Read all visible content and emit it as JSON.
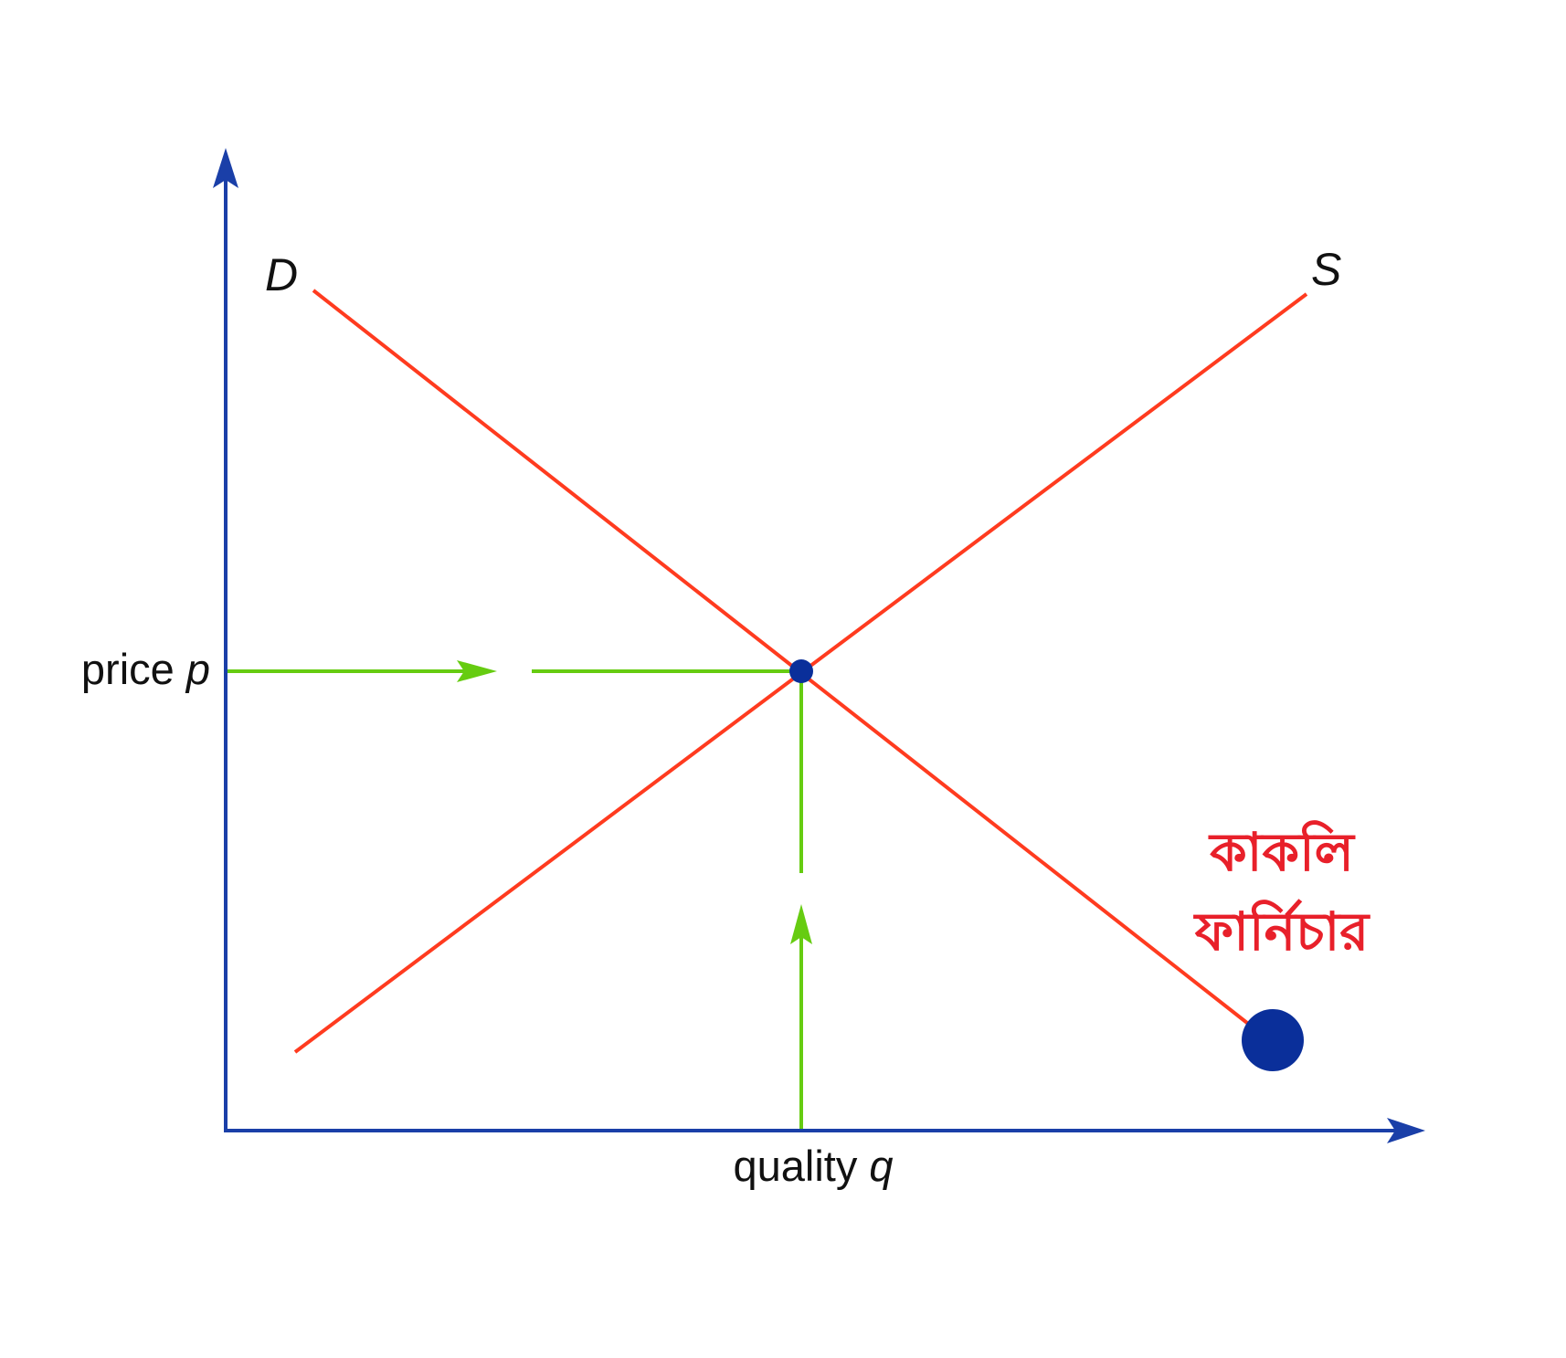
{
  "axes": {
    "y_label": "price",
    "y_symbol": "p",
    "x_label": "quality",
    "x_symbol": "q"
  },
  "curves": {
    "demand_label": "D",
    "supply_label": "S"
  },
  "brand": {
    "line1": "কাকলি",
    "line2": "ফার্নিচার"
  },
  "colors": {
    "axis": "#1a3fa8",
    "curve": "#ff3b1f",
    "guide": "#66cc11",
    "point": "#0a2f9a",
    "brand_text": "#e8202a"
  }
}
